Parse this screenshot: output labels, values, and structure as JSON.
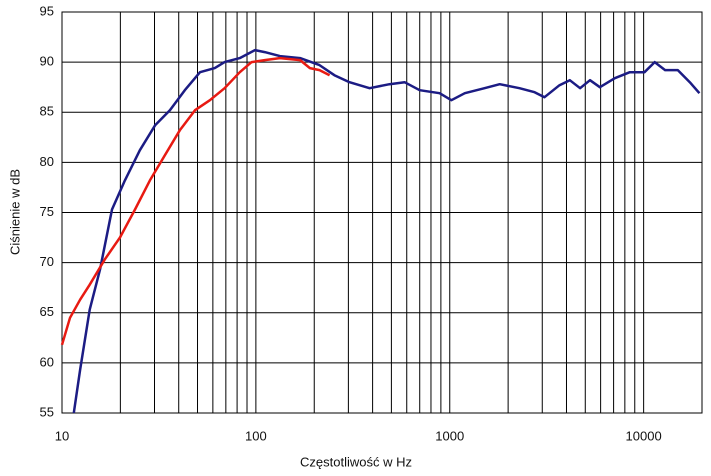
{
  "chart_data": {
    "type": "line",
    "x_label": "Częstotliwość w Hz",
    "y_label": "Ciśnienie w dB",
    "xscale": "log",
    "grid": true,
    "minor_grid": true,
    "xlim": [
      10,
      20000
    ],
    "ylim": [
      55,
      95
    ],
    "xticks": [
      10,
      100,
      1000,
      10000
    ],
    "yticks": [
      55,
      60,
      65,
      70,
      75,
      80,
      85,
      90,
      95
    ],
    "series": [
      {
        "color": "#1c1c84",
        "x": [
          11.5,
          12.4,
          13.9,
          15.7,
          18.1,
          21.1,
          25.2,
          30.2,
          36,
          43,
          51.5,
          61.4,
          69,
          82.6,
          99,
          111,
          133,
          169,
          213,
          254,
          304,
          386,
          489,
          585,
          700,
          886,
          1020,
          1195,
          1510,
          1810,
          2290,
          2740,
          3080,
          3680,
          4160,
          4700,
          5290,
          5950,
          7100,
          8480,
          10100,
          11400,
          12900,
          15000,
          17300,
          19400
        ],
        "values": [
          55,
          59.3,
          65.3,
          69.3,
          75.3,
          78.2,
          81.2,
          83.7,
          85.2,
          87.2,
          89,
          89.4,
          90,
          90.4,
          91.2,
          91,
          90.6,
          90.4,
          89.7,
          88.7,
          88,
          87.4,
          87.8,
          88,
          87.2,
          86.9,
          86.2,
          86.9,
          87.4,
          87.8,
          87.4,
          87,
          86.5,
          87.7,
          88.2,
          87.4,
          88.2,
          87.5,
          88.4,
          89,
          89,
          90,
          89.2,
          89.2,
          88,
          86.9
        ]
      },
      {
        "color": "#e81a12",
        "x": [
          10,
          11,
          12.4,
          13.9,
          16.6,
          19.9,
          23.8,
          28.4,
          33.9,
          40.5,
          48.5,
          57.9,
          69,
          82.6,
          95,
          111,
          133,
          169,
          190,
          213,
          240
        ],
        "values": [
          61.8,
          64.5,
          66.3,
          67.8,
          70.3,
          72.5,
          75.3,
          78.2,
          80.7,
          83.2,
          85.2,
          86.2,
          87.4,
          89,
          90,
          90.2,
          90.4,
          90.2,
          89.4,
          89.2,
          88.7
        ]
      }
    ]
  }
}
